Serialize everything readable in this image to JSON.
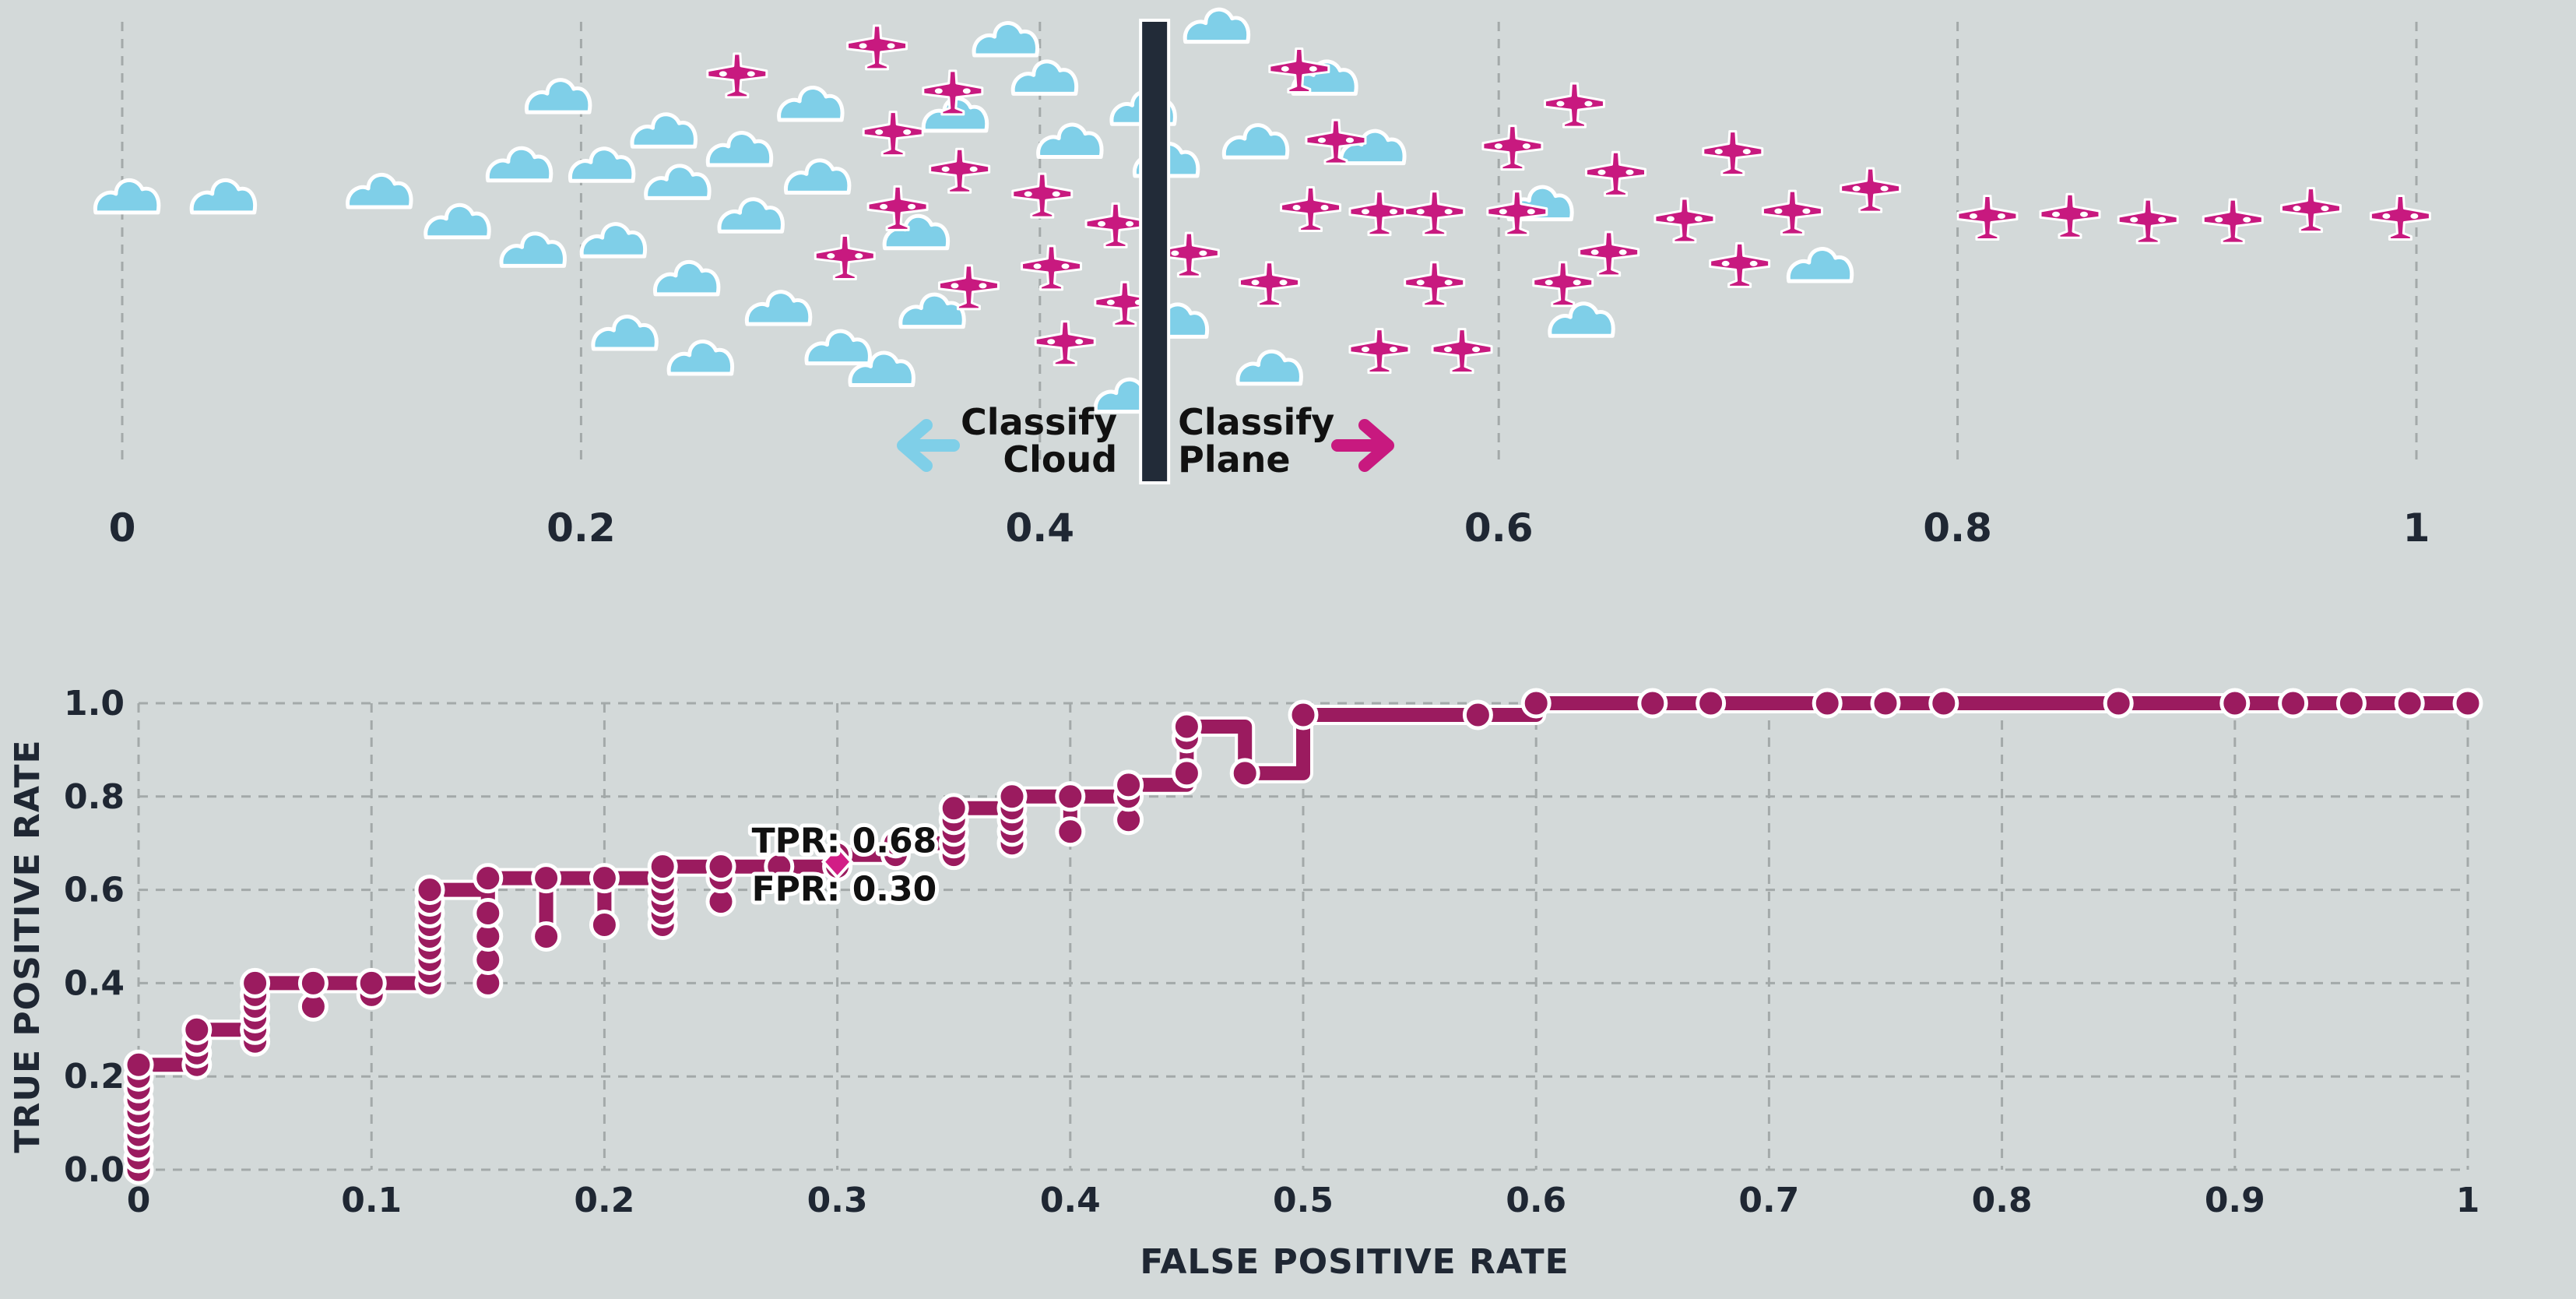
{
  "colors": {
    "background": "#d3d9d9",
    "cloud": "#7fcfe8",
    "plane": "#c8197f",
    "roc_line": "#9b1b5f",
    "threshold": "#222b38",
    "grid": "#a3a9a9",
    "text": "#1f2733"
  },
  "icons": {
    "cloud": "cloud-icon",
    "plane": "plane-icon",
    "left_arrow": "arrow-left-icon",
    "right_arrow": "arrow-right-icon"
  },
  "chart_data": [
    {
      "type": "scatter",
      "xlim": [
        0,
        1
      ],
      "ticks": [
        "0",
        "0.2",
        "0.4",
        "0.6",
        "0.8",
        "1"
      ],
      "threshold": 0.45,
      "left_label": [
        "Classify",
        "Cloud"
      ],
      "right_label": [
        "Classify",
        "Plane"
      ],
      "grid": "vertical-dashed",
      "clouds": [
        [
          0.002,
          0.405
        ],
        [
          0.044,
          0.405
        ],
        [
          0.112,
          0.393
        ],
        [
          0.146,
          0.46
        ],
        [
          0.173,
          0.334
        ],
        [
          0.179,
          0.523
        ],
        [
          0.19,
          0.183
        ],
        [
          0.209,
          0.335
        ],
        [
          0.214,
          0.502
        ],
        [
          0.219,
          0.707
        ],
        [
          0.236,
          0.259
        ],
        [
          0.242,
          0.373
        ],
        [
          0.246,
          0.586
        ],
        [
          0.252,
          0.762
        ],
        [
          0.269,
          0.3
        ],
        [
          0.274,
          0.447
        ],
        [
          0.286,
          0.652
        ],
        [
          0.3,
          0.2
        ],
        [
          0.303,
          0.361
        ],
        [
          0.312,
          0.739
        ],
        [
          0.331,
          0.787
        ],
        [
          0.346,
          0.484
        ],
        [
          0.353,
          0.658
        ],
        [
          0.363,
          0.224
        ],
        [
          0.385,
          0.057
        ],
        [
          0.402,
          0.142
        ],
        [
          0.413,
          0.282
        ],
        [
          0.438,
          0.846
        ],
        [
          0.445,
          0.209
        ],
        [
          0.455,
          0.324
        ],
        [
          0.459,
          0.68
        ],
        [
          0.477,
          0.027
        ],
        [
          0.494,
          0.283
        ],
        [
          0.5,
          0.784
        ],
        [
          0.524,
          0.142
        ],
        [
          0.545,
          0.296
        ],
        [
          0.618,
          0.42
        ],
        [
          0.636,
          0.678
        ],
        [
          0.74,
          0.557
        ]
      ],
      "planes": [
        [
          0.268,
          0.129
        ],
        [
          0.329,
          0.067
        ],
        [
          0.336,
          0.258
        ],
        [
          0.362,
          0.167
        ],
        [
          0.365,
          0.34
        ],
        [
          0.338,
          0.423
        ],
        [
          0.369,
          0.598
        ],
        [
          0.315,
          0.532
        ],
        [
          0.401,
          0.395
        ],
        [
          0.405,
          0.555
        ],
        [
          0.411,
          0.722
        ],
        [
          0.433,
          0.461
        ],
        [
          0.437,
          0.635
        ],
        [
          0.465,
          0.526
        ],
        [
          0.513,
          0.118
        ],
        [
          0.518,
          0.425
        ],
        [
          0.5,
          0.591
        ],
        [
          0.529,
          0.276
        ],
        [
          0.548,
          0.739
        ],
        [
          0.548,
          0.434
        ],
        [
          0.572,
          0.434
        ],
        [
          0.572,
          0.591
        ],
        [
          0.584,
          0.739
        ],
        [
          0.608,
          0.434
        ],
        [
          0.606,
          0.289
        ],
        [
          0.628,
          0.591
        ],
        [
          0.633,
          0.195
        ],
        [
          0.651,
          0.347
        ],
        [
          0.648,
          0.524
        ],
        [
          0.681,
          0.45
        ],
        [
          0.702,
          0.301
        ],
        [
          0.705,
          0.549
        ],
        [
          0.728,
          0.433
        ],
        [
          0.762,
          0.383
        ],
        [
          0.813,
          0.444
        ],
        [
          0.849,
          0.44
        ],
        [
          0.883,
          0.452
        ],
        [
          0.92,
          0.452
        ],
        [
          0.954,
          0.427
        ],
        [
          0.993,
          0.444
        ]
      ]
    },
    {
      "type": "line",
      "xlabel": "FALSE POSITIVE RATE",
      "ylabel": "TRUE POSITIVE RATE",
      "xlim": [
        0,
        1
      ],
      "ylim": [
        0,
        1
      ],
      "xticks": [
        "0",
        "0.1",
        "0.2",
        "0.3",
        "0.4",
        "0.5",
        "0.6",
        "0.7",
        "0.8",
        "0.9",
        "1"
      ],
      "yticks": [
        "0.0",
        "0.2",
        "0.4",
        "0.6",
        "0.8",
        "1.0"
      ],
      "grid": true,
      "annotation": {
        "tpr": "TPR: 0.68",
        "fpr": "FPR: 0.30",
        "x": 0.3,
        "y": 0.66
      },
      "points": [
        [
          0,
          0
        ],
        [
          0,
          0.025
        ],
        [
          0,
          0.05
        ],
        [
          0,
          0.075
        ],
        [
          0,
          0.1
        ],
        [
          0,
          0.125
        ],
        [
          0,
          0.15
        ],
        [
          0,
          0.175
        ],
        [
          0,
          0.2
        ],
        [
          0,
          0.225
        ],
        [
          0.025,
          0.225
        ],
        [
          0.025,
          0.25
        ],
        [
          0.025,
          0.275
        ],
        [
          0.025,
          0.3
        ],
        [
          0.05,
          0.275
        ],
        [
          0.05,
          0.3
        ],
        [
          0.05,
          0.325
        ],
        [
          0.05,
          0.35
        ],
        [
          0.05,
          0.375
        ],
        [
          0.05,
          0.4
        ],
        [
          0.075,
          0.35
        ],
        [
          0.075,
          0.4
        ],
        [
          0.1,
          0.375
        ],
        [
          0.1,
          0.4
        ],
        [
          0.125,
          0.4
        ],
        [
          0.125,
          0.425
        ],
        [
          0.125,
          0.45
        ],
        [
          0.125,
          0.475
        ],
        [
          0.125,
          0.5
        ],
        [
          0.125,
          0.525
        ],
        [
          0.125,
          0.55
        ],
        [
          0.125,
          0.575
        ],
        [
          0.125,
          0.6
        ],
        [
          0.15,
          0.4
        ],
        [
          0.15,
          0.45
        ],
        [
          0.15,
          0.5
        ],
        [
          0.15,
          0.55
        ],
        [
          0.15,
          0.625
        ],
        [
          0.175,
          0.5
        ],
        [
          0.175,
          0.625
        ],
        [
          0.2,
          0.525
        ],
        [
          0.2,
          0.625
        ],
        [
          0.225,
          0.525
        ],
        [
          0.225,
          0.55
        ],
        [
          0.225,
          0.575
        ],
        [
          0.225,
          0.6
        ],
        [
          0.225,
          0.625
        ],
        [
          0.225,
          0.65
        ],
        [
          0.25,
          0.575
        ],
        [
          0.25,
          0.625
        ],
        [
          0.25,
          0.65
        ],
        [
          0.275,
          0.625
        ],
        [
          0.275,
          0.65
        ],
        [
          0.3,
          0.65
        ],
        [
          0.3,
          0.675
        ],
        [
          0.325,
          0.675
        ],
        [
          0.325,
          0.7
        ],
        [
          0.35,
          0.675
        ],
        [
          0.35,
          0.7
        ],
        [
          0.35,
          0.725
        ],
        [
          0.35,
          0.75
        ],
        [
          0.35,
          0.775
        ],
        [
          0.375,
          0.7
        ],
        [
          0.375,
          0.725
        ],
        [
          0.375,
          0.75
        ],
        [
          0.375,
          0.775
        ],
        [
          0.375,
          0.8
        ],
        [
          0.4,
          0.725
        ],
        [
          0.4,
          0.8
        ],
        [
          0.425,
          0.75
        ],
        [
          0.425,
          0.8
        ],
        [
          0.425,
          0.825
        ],
        [
          0.45,
          0.85
        ],
        [
          0.45,
          0.925
        ],
        [
          0.45,
          0.95
        ],
        [
          0.475,
          0.85
        ],
        [
          0.5,
          0.975
        ],
        [
          0.575,
          0.975
        ],
        [
          0.6,
          1.0
        ],
        [
          0.65,
          1.0
        ],
        [
          0.675,
          1.0
        ],
        [
          0.725,
          1.0
        ],
        [
          0.75,
          1.0
        ],
        [
          0.775,
          1.0
        ],
        [
          0.85,
          1.0
        ],
        [
          0.9,
          1.0
        ],
        [
          0.925,
          1.0
        ],
        [
          0.95,
          1.0
        ],
        [
          0.975,
          1.0
        ],
        [
          1.0,
          1.0
        ]
      ],
      "path": [
        [
          0,
          0
        ],
        [
          0,
          0.225
        ],
        [
          0.025,
          0.225
        ],
        [
          0.025,
          0.3
        ],
        [
          0.05,
          0.3
        ],
        [
          0.05,
          0.4
        ],
        [
          0.075,
          0.4
        ],
        [
          0.1,
          0.4
        ],
        [
          0.125,
          0.4
        ],
        [
          0.125,
          0.6
        ],
        [
          0.15,
          0.6
        ],
        [
          0.15,
          0.4
        ],
        [
          0.15,
          0.625
        ],
        [
          0.175,
          0.625
        ],
        [
          0.175,
          0.5
        ],
        [
          0.175,
          0.625
        ],
        [
          0.2,
          0.625
        ],
        [
          0.2,
          0.525
        ],
        [
          0.2,
          0.625
        ],
        [
          0.225,
          0.625
        ],
        [
          0.225,
          0.525
        ],
        [
          0.225,
          0.65
        ],
        [
          0.25,
          0.65
        ],
        [
          0.25,
          0.575
        ],
        [
          0.25,
          0.65
        ],
        [
          0.275,
          0.65
        ],
        [
          0.3,
          0.65
        ],
        [
          0.3,
          0.675
        ],
        [
          0.325,
          0.675
        ],
        [
          0.325,
          0.7
        ],
        [
          0.35,
          0.7
        ],
        [
          0.35,
          0.675
        ],
        [
          0.35,
          0.775
        ],
        [
          0.375,
          0.775
        ],
        [
          0.375,
          0.7
        ],
        [
          0.375,
          0.8
        ],
        [
          0.4,
          0.8
        ],
        [
          0.4,
          0.725
        ],
        [
          0.4,
          0.8
        ],
        [
          0.425,
          0.8
        ],
        [
          0.425,
          0.75
        ],
        [
          0.425,
          0.825
        ],
        [
          0.45,
          0.825
        ],
        [
          0.45,
          0.85
        ],
        [
          0.45,
          0.95
        ],
        [
          0.475,
          0.95
        ],
        [
          0.475,
          0.85
        ],
        [
          0.5,
          0.85
        ],
        [
          0.5,
          0.975
        ],
        [
          0.575,
          0.975
        ],
        [
          0.6,
          0.975
        ],
        [
          0.6,
          1.0
        ],
        [
          1.0,
          1.0
        ]
      ]
    }
  ]
}
